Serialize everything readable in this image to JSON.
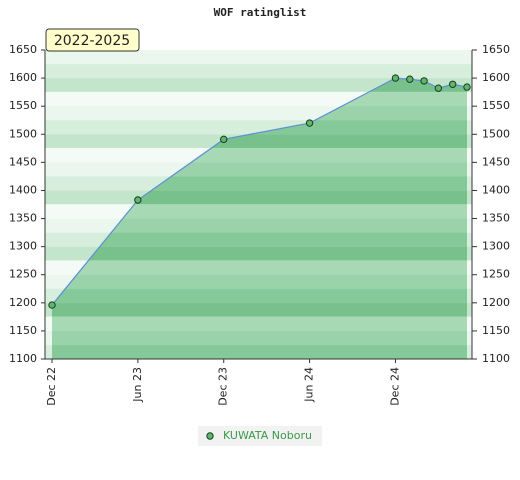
{
  "chart_data": {
    "type": "line",
    "title": "WOF ratinglist",
    "badge": "2022-2025",
    "x": [
      "2022-12",
      "2023-06",
      "2023-12",
      "2024-06",
      "2024-12",
      "2025-01",
      "2025-02",
      "2025-03",
      "2025-04",
      "2025-05"
    ],
    "series": [
      {
        "name": "KUWATA Noboru",
        "color": "#5b8fd6",
        "values": [
          1196,
          1383,
          1491,
          1520,
          1600,
          1598,
          1595,
          1582,
          1589,
          1584
        ]
      }
    ],
    "xlim": [
      "2022-12",
      "2025-05"
    ],
    "xticks": [
      {
        "value": "2022-12",
        "label": "Dec 22"
      },
      {
        "value": "2023-06",
        "label": "Jun 23"
      },
      {
        "value": "2023-12",
        "label": "Dec 23"
      },
      {
        "value": "2024-06",
        "label": "Jun 24"
      },
      {
        "value": "2024-12",
        "label": "Dec 24"
      }
    ],
    "ylim": [
      1100,
      1650
    ],
    "yticks": [
      1100,
      1150,
      1200,
      1250,
      1300,
      1350,
      1400,
      1450,
      1500,
      1550,
      1600,
      1650
    ]
  }
}
